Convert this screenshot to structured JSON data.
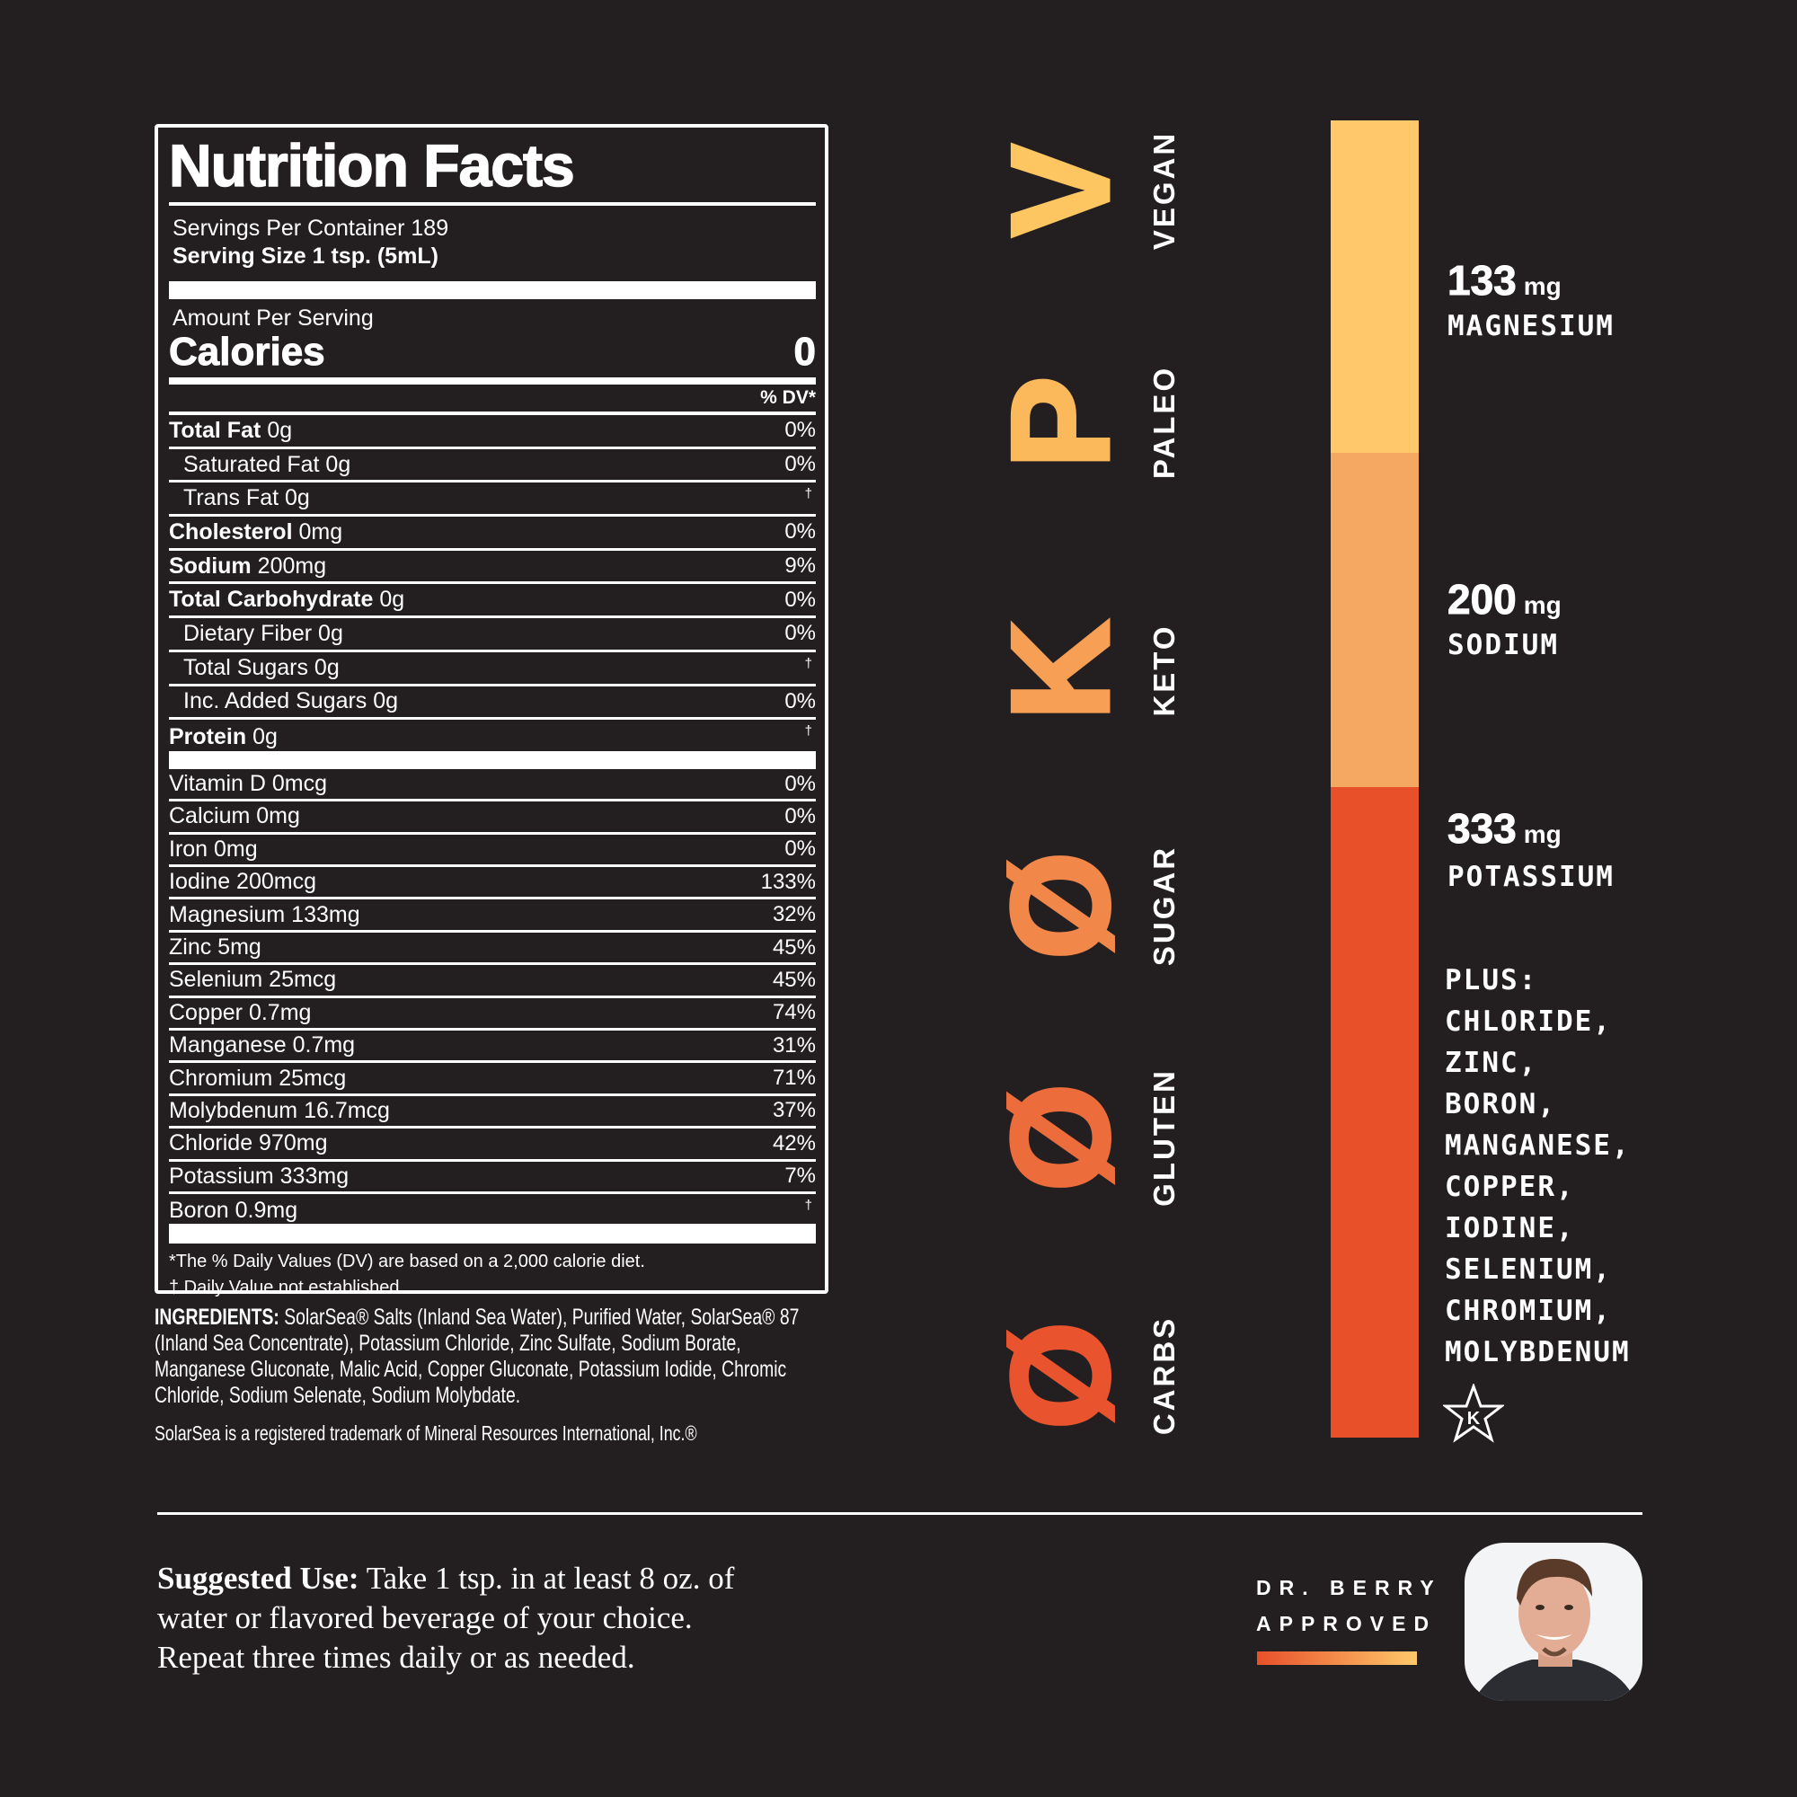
{
  "label": {
    "title": "Nutrition Facts",
    "servings": "Servings Per Container 189",
    "serving_size": "Serving Size 1 tsp. (5mL)",
    "amount_per_serving": "Amount Per Serving",
    "calories_label": "Calories",
    "calories_value": "0",
    "dv_header": "% DV*",
    "macros": [
      {
        "bold": "Total Fat",
        "amount": "0g",
        "dv": "0%"
      },
      {
        "bold": "",
        "amount": "Saturated Fat 0g",
        "dv": "0%",
        "indent": true
      },
      {
        "bold": "",
        "amount": "Trans Fat 0g",
        "dv": "†",
        "indent": true
      },
      {
        "bold": "Cholesterol",
        "amount": "0mg",
        "dv": "0%"
      },
      {
        "bold": "Sodium",
        "amount": "200mg",
        "dv": "9%"
      },
      {
        "bold": "Total Carbohydrate",
        "amount": "0g",
        "dv": "0%"
      },
      {
        "bold": "",
        "amount": "Dietary Fiber 0g",
        "dv": "0%",
        "indent": true
      },
      {
        "bold": "",
        "amount": "Total Sugars 0g",
        "dv": "†",
        "indent": true
      },
      {
        "bold": "",
        "amount": "Inc. Added Sugars 0g",
        "dv": "0%",
        "indent": true
      },
      {
        "bold": "Protein",
        "amount": "0g",
        "dv": "†"
      }
    ],
    "micros": [
      {
        "amount": "Vitamin D 0mcg",
        "dv": "0%"
      },
      {
        "amount": "Calcium 0mg",
        "dv": "0%"
      },
      {
        "amount": "Iron 0mg",
        "dv": "0%"
      },
      {
        "amount": "Iodine 200mcg",
        "dv": "133%"
      },
      {
        "amount": "Magnesium 133mg",
        "dv": "32%"
      },
      {
        "amount": "Zinc 5mg",
        "dv": "45%"
      },
      {
        "amount": "Selenium 25mcg",
        "dv": "45%"
      },
      {
        "amount": "Copper 0.7mg",
        "dv": "74%"
      },
      {
        "amount": "Manganese 0.7mg",
        "dv": "31%"
      },
      {
        "amount": "Chromium 25mcg",
        "dv": "71%"
      },
      {
        "amount": "Molybdenum 16.7mcg",
        "dv": "37%"
      },
      {
        "amount": "Chloride 970mg",
        "dv": "42%"
      },
      {
        "amount": "Potassium 333mg",
        "dv": "7%"
      },
      {
        "amount": "Boron 0.9mg",
        "dv": "†"
      }
    ],
    "footnote1": "*The % Daily Values (DV) are based on a 2,000 calorie diet.",
    "footnote2": "† Daily Value not established."
  },
  "ingredients": {
    "label": "INGREDIENTS:",
    "text": " SolarSea® Salts (Inland Sea Water), Purified Water, SolarSea® 87 (Inland Sea Concentrate), Potassium Chloride, Zinc Sulfate, Sodium Borate, Manganese Gluconate, Malic Acid, Copper Gluconate, Potassium Iodide, Chromic Chloride, Sodium Selenate, Sodium Molybdate."
  },
  "trademark": "SolarSea is a registered trademark of Mineral Resources International, Inc.®",
  "badges": [
    {
      "glyph": "V",
      "label": "VEGAN",
      "color": "#fdc660"
    },
    {
      "glyph": "P",
      "label": "PALEO",
      "color": "#fbb95c"
    },
    {
      "glyph": "K",
      "label": "KETO",
      "color": "#f7a055"
    },
    {
      "glyph": "Ø",
      "label": "SUGAR",
      "color": "#f2874a"
    },
    {
      "glyph": "Ø",
      "label": "GLUTEN",
      "color": "#ed6c3b"
    },
    {
      "glyph": "Ø",
      "label": "CARBS",
      "color": "#e9532d"
    }
  ],
  "electrolytes": [
    {
      "value": "133",
      "unit": "mg",
      "name": "MAGNESIUM",
      "color": "#ffc96b"
    },
    {
      "value": "200",
      "unit": "mg",
      "name": "SODIUM",
      "color": "#f5a862"
    },
    {
      "value": "333",
      "unit": "mg",
      "name": "POTASSIUM",
      "color": "#e8502a"
    }
  ],
  "plus": [
    "PLUS:",
    "CHLORIDE,",
    "ZINC,",
    "BORON,",
    "MANGANESE,",
    "COPPER,",
    "IODINE,",
    "SELENIUM,",
    "CHROMIUM,",
    "MOLYBDENUM"
  ],
  "kosher_icon": "star-k-icon",
  "suggested": {
    "label": "Suggested Use:",
    "text": " Take 1 tsp. in at least 8 oz. of water or flavored beverage of your choice. Repeat three times daily or as needed."
  },
  "approval": {
    "line1": "DR. BERRY",
    "line2": "APPROVED"
  }
}
